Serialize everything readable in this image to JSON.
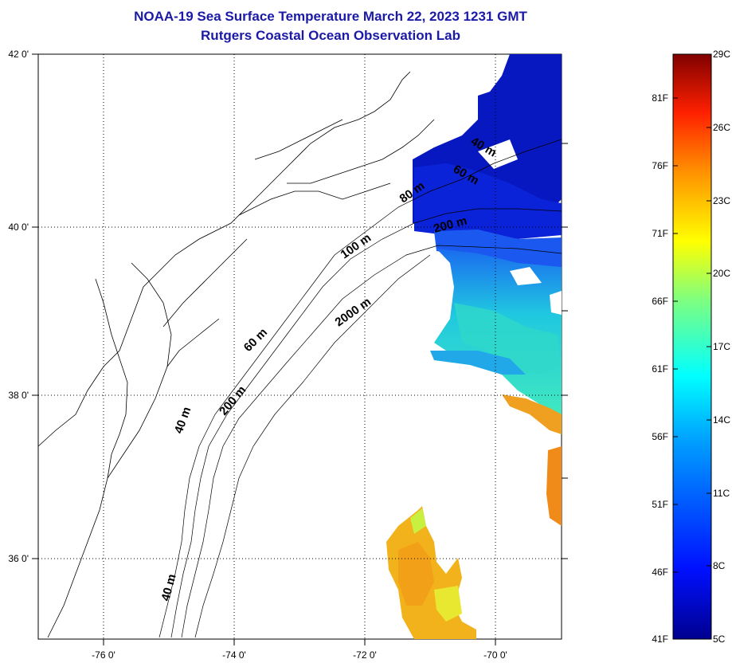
{
  "title": {
    "line1": "NOAA-19 Sea Surface Temperature March 22, 2023 1231 GMT",
    "line2": "Rutgers Coastal Ocean Observation Lab"
  },
  "map": {
    "lon_ticks": [
      "-76 0'",
      "-74 0'",
      "-72 0'",
      "-70 0'"
    ],
    "lat_ticks": [
      "42 0'",
      "40 0'",
      "38 0'",
      "36 0'"
    ],
    "depth_labels": [
      "40 m",
      "40 m",
      "60 m",
      "200 m",
      "2000 m",
      "100 m",
      "80 m",
      "200 m",
      "60 m",
      "40 m"
    ]
  },
  "colorbar": {
    "fahrenheit": [
      "81F",
      "76F",
      "71F",
      "66F",
      "61F",
      "56F",
      "51F",
      "46F",
      "41F"
    ],
    "celsius": [
      "29C",
      "26C",
      "23C",
      "20C",
      "17C",
      "14C",
      "11C",
      "8C",
      "5C"
    ]
  },
  "colors": {
    "title": "#1a1aa6",
    "cold": "#0a1ab4",
    "warm": "#f0a020"
  }
}
